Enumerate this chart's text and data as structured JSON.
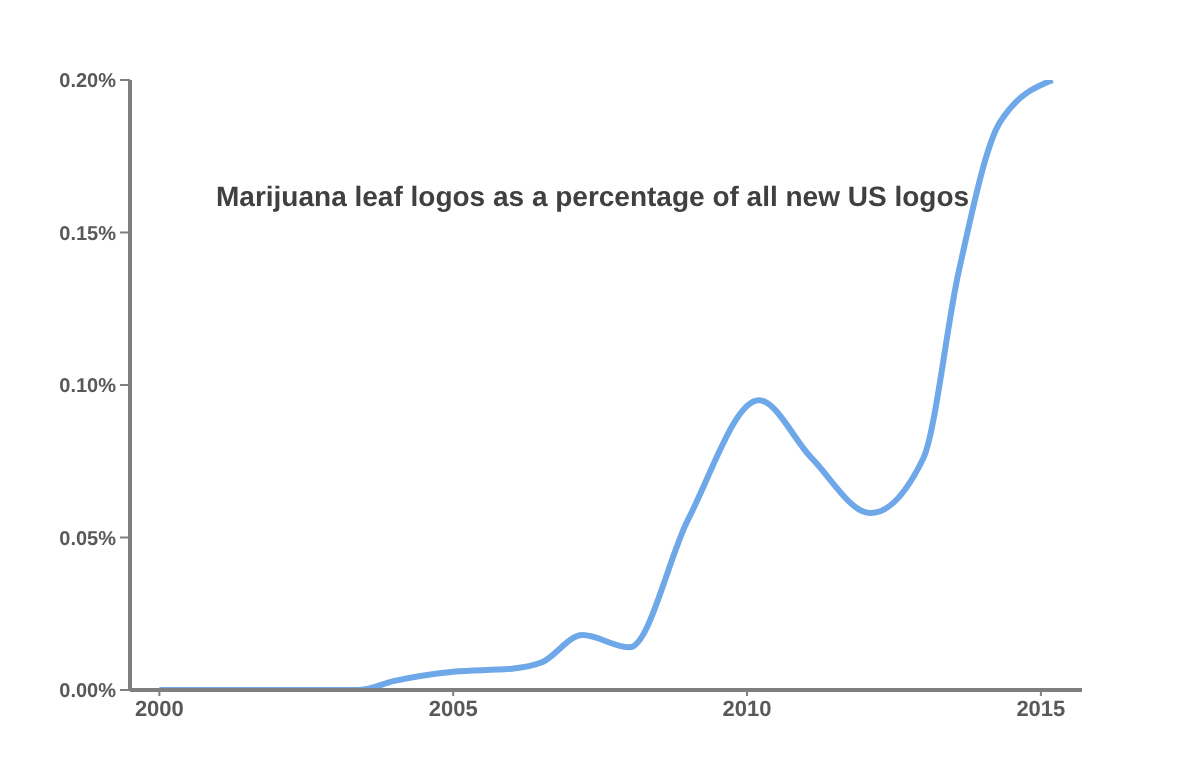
{
  "chart_data": {
    "type": "line",
    "title": "Marijuana leaf logos as a percentage of all new US logos",
    "series": [
      {
        "color": "#6fa8e8",
        "x": [
          2000,
          2001,
          2002,
          2003,
          2003.4,
          2004,
          2005,
          2006,
          2006.5,
          2007.2,
          2008,
          2009,
          2010.2,
          2011.1,
          2012.1,
          2013,
          2013.6,
          2014.3,
          2015.2
        ],
        "values": [
          0,
          0,
          0,
          0,
          0,
          0.003,
          0.006,
          0.007,
          0.009,
          0.018,
          0.014,
          0.056,
          0.095,
          0.076,
          0.058,
          0.076,
          0.137,
          0.186,
          0.2
        ]
      }
    ],
    "xlim": [
      1999.5,
      2015.7
    ],
    "xticks": [
      2000,
      2005,
      2010,
      2015
    ],
    "ylim": [
      0,
      0.2
    ],
    "yticks": [
      {
        "value": 0,
        "label": "0.00%"
      },
      {
        "value": 0.05,
        "label": "0.05%"
      },
      {
        "value": 0.1,
        "label": "0.10%"
      },
      {
        "value": 0.15,
        "label": "0.15%"
      },
      {
        "value": 0.2,
        "label": "0.20%"
      }
    ],
    "grid": false,
    "marker": "none",
    "line_style": "solid"
  }
}
